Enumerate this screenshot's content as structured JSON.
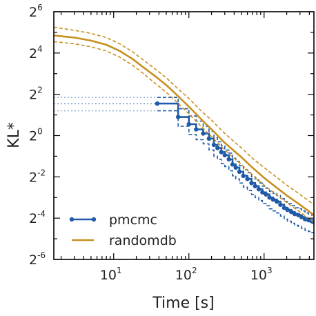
{
  "chart_data": {
    "type": "line",
    "title": "",
    "xlabel": "Time [s]",
    "ylabel": "KL*",
    "xscale": "log10",
    "yscale": "log2",
    "xlim": [
      1.6,
      4600
    ],
    "ylim_log2": [
      -6,
      6
    ],
    "x_ticks": [
      {
        "value": 10,
        "base": "10",
        "exp": "1"
      },
      {
        "value": 100,
        "base": "10",
        "exp": "2"
      },
      {
        "value": 1000,
        "base": "10",
        "exp": "3"
      }
    ],
    "y_ticks": [
      {
        "value_log2": 6,
        "base": "2",
        "exp": "6"
      },
      {
        "value_log2": 4,
        "base": "2",
        "exp": "4"
      },
      {
        "value_log2": 2,
        "base": "2",
        "exp": "2"
      },
      {
        "value_log2": 0,
        "base": "2",
        "exp": "0"
      },
      {
        "value_log2": -2,
        "base": "2",
        "exp": "-2"
      },
      {
        "value_log2": -4,
        "base": "2",
        "exp": "-4"
      },
      {
        "value_log2": -6,
        "base": "2",
        "exp": "-6"
      }
    ],
    "legend": {
      "position": "bottom-left"
    },
    "series": [
      {
        "name": "pmcmc",
        "color": "#1f5aa8",
        "style": "step",
        "markers": true,
        "pre_start_dotted": {
          "x": [
            1.6,
            38
          ],
          "y_log2": 1.55
        },
        "median": {
          "x": [
            38,
            72,
            100,
            125,
            155,
            185,
            215,
            240,
            270,
            300,
            340,
            380,
            420,
            470,
            530,
            600,
            680,
            760,
            850,
            950,
            1060,
            1180,
            1320,
            1480,
            1650,
            1850,
            2050,
            2300,
            2550,
            2850,
            3150,
            3500,
            3900,
            4300,
            4600
          ],
          "y_log2": [
            1.55,
            0.9,
            0.55,
            0.3,
            0.1,
            -0.15,
            -0.45,
            -0.6,
            -0.8,
            -0.95,
            -1.15,
            -1.4,
            -1.55,
            -1.75,
            -1.95,
            -2.1,
            -2.3,
            -2.45,
            -2.6,
            -2.75,
            -2.85,
            -3.0,
            -3.1,
            -3.2,
            -3.35,
            -3.5,
            -3.6,
            -3.7,
            -3.8,
            -3.85,
            -3.95,
            -4.05,
            -4.1,
            -4.15,
            -4.2
          ]
        },
        "upper": {
          "x": [
            38,
            72,
            100,
            125,
            155,
            185,
            215,
            240,
            270,
            300,
            340,
            380,
            420,
            470,
            530,
            600,
            680,
            760,
            850,
            950,
            1060,
            1180,
            1320,
            1480,
            1650,
            1850,
            2050,
            2300,
            2550,
            2850,
            3150,
            3500,
            3900,
            4300,
            4600
          ],
          "y_log2": [
            1.85,
            1.3,
            0.95,
            0.7,
            0.45,
            0.2,
            -0.1,
            -0.3,
            -0.5,
            -0.7,
            -0.85,
            -1.1,
            -1.25,
            -1.45,
            -1.65,
            -1.8,
            -2.0,
            -2.15,
            -2.3,
            -2.45,
            -2.55,
            -2.7,
            -2.8,
            -2.9,
            -3.05,
            -3.2,
            -3.3,
            -3.4,
            -3.5,
            -3.55,
            -3.65,
            -3.75,
            -3.8,
            -3.85,
            -3.9
          ]
        },
        "lower": {
          "x": [
            38,
            72,
            100,
            125,
            155,
            185,
            215,
            240,
            270,
            300,
            340,
            380,
            420,
            470,
            530,
            600,
            680,
            760,
            850,
            950,
            1060,
            1180,
            1320,
            1480,
            1650,
            1850,
            2050,
            2300,
            2550,
            2850,
            3150,
            3500,
            3900,
            4300,
            4600
          ],
          "y_log2": [
            1.2,
            0.45,
            0.05,
            -0.2,
            -0.4,
            -0.7,
            -1.0,
            -1.15,
            -1.35,
            -1.5,
            -1.7,
            -1.95,
            -2.1,
            -2.3,
            -2.5,
            -2.65,
            -2.85,
            -3.0,
            -3.15,
            -3.3,
            -3.4,
            -3.55,
            -3.65,
            -3.75,
            -3.9,
            -4.05,
            -4.15,
            -4.25,
            -4.35,
            -4.4,
            -4.5,
            -4.6,
            -4.65,
            -4.7,
            -4.75
          ]
        }
      },
      {
        "name": "randomdb",
        "color": "#c8901f",
        "style": "line",
        "markers": false,
        "median": {
          "x": [
            1.6,
            3,
            5,
            8,
            12,
            18,
            25,
            35,
            50,
            70,
            100,
            150,
            200,
            300,
            500,
            700,
            1000,
            1500,
            2000,
            3000,
            4600
          ],
          "y_log2": [
            4.85,
            4.75,
            4.6,
            4.4,
            4.1,
            3.7,
            3.3,
            2.9,
            2.45,
            1.95,
            1.4,
            0.75,
            0.3,
            -0.35,
            -1.05,
            -1.55,
            -2.05,
            -2.55,
            -2.9,
            -3.35,
            -3.85
          ]
        },
        "upper": {
          "x": [
            1.6,
            3,
            5,
            8,
            12,
            18,
            25,
            35,
            50,
            70,
            100,
            150,
            200,
            300,
            500,
            700,
            1000,
            1500,
            2000,
            3000,
            4600
          ],
          "y_log2": [
            5.25,
            5.1,
            4.95,
            4.75,
            4.45,
            4.05,
            3.65,
            3.25,
            2.8,
            2.3,
            1.8,
            1.15,
            0.75,
            0.1,
            -0.6,
            -1.1,
            -1.55,
            -2.05,
            -2.4,
            -2.85,
            -3.35
          ]
        },
        "lower": {
          "x": [
            1.6,
            3,
            5,
            8,
            12,
            18,
            25,
            35,
            50,
            70,
            100,
            150,
            200,
            300,
            500,
            700,
            1000,
            1500,
            2000,
            3000,
            4600
          ],
          "y_log2": [
            4.55,
            4.45,
            4.3,
            4.1,
            3.8,
            3.4,
            3.0,
            2.55,
            2.1,
            1.6,
            1.05,
            0.4,
            -0.05,
            -0.7,
            -1.4,
            -1.9,
            -2.4,
            -2.9,
            -3.25,
            -3.7,
            -4.2
          ]
        }
      }
    ]
  }
}
